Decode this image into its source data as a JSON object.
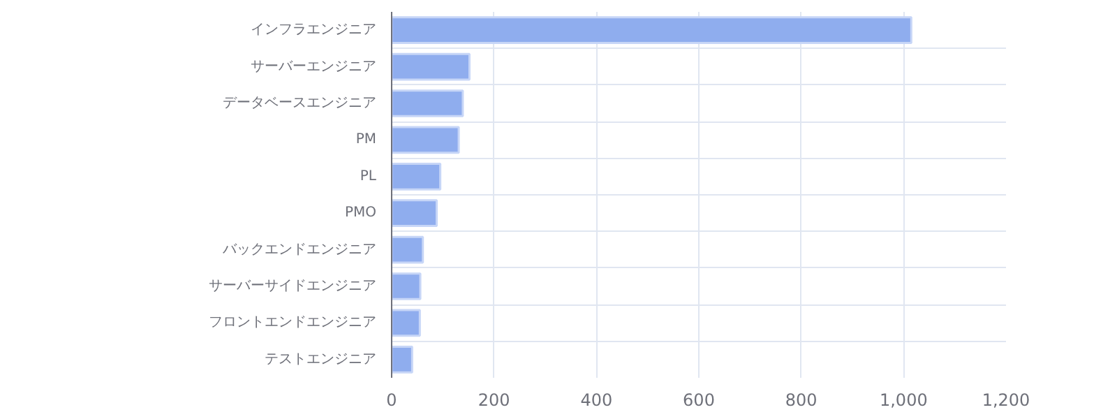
{
  "chart_data": {
    "type": "bar",
    "orientation": "horizontal",
    "categories": [
      "インフラエンジニア",
      "サーバーエンジニア",
      "データベースエンジニア",
      "PM",
      "PL",
      "PMO",
      "バックエンドエンジニア",
      "サーバーサイドエンジニア",
      "フロントエンドエンジニア",
      "テストエンジニア"
    ],
    "values": [
      1015,
      152,
      139,
      131,
      95,
      88,
      61,
      56,
      55,
      40
    ],
    "color": "#8fadee",
    "xlim": [
      0,
      1200
    ],
    "xticks": [
      0,
      {
        "value": 200,
        "label": "200"
      },
      {
        "value": 400,
        "label": "400"
      },
      {
        "value": 600,
        "label": "600"
      },
      {
        "value": 800,
        "label": "800"
      },
      {
        "value": 1000,
        "label": "1,000"
      },
      {
        "value": 1200,
        "label": "1,200"
      }
    ],
    "grid": true
  }
}
